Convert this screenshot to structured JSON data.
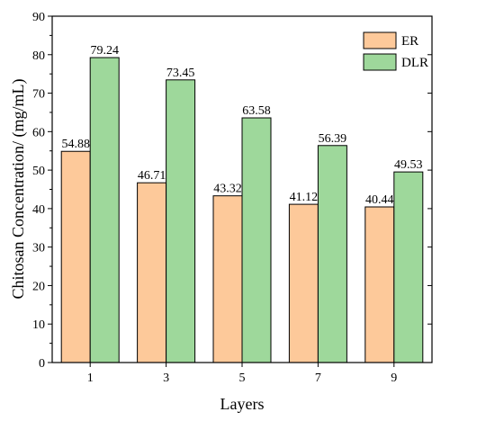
{
  "chart_data": {
    "type": "bar",
    "title": "",
    "xlabel": "Layers",
    "ylabel": "Chitosan Concentration/ (mg/mL)",
    "categories": [
      "1",
      "3",
      "5",
      "7",
      "9"
    ],
    "ylim": [
      0,
      90
    ],
    "yticks": [
      0,
      10,
      20,
      30,
      40,
      50,
      60,
      70,
      80,
      90
    ],
    "legend_position": "top-right",
    "grid": false,
    "series": [
      {
        "name": "ER",
        "values": [
          54.88,
          46.71,
          43.32,
          41.12,
          40.44
        ],
        "labels": [
          "54.88",
          "46.71",
          "43.32",
          "41.12",
          "40.44"
        ],
        "color": "#FDC99A"
      },
      {
        "name": "DLR",
        "values": [
          79.24,
          73.45,
          63.58,
          56.39,
          49.53
        ],
        "labels": [
          "79.24",
          "73.45",
          "63.58",
          "56.39",
          "49.53"
        ],
        "color": "#9ED89B"
      }
    ]
  }
}
